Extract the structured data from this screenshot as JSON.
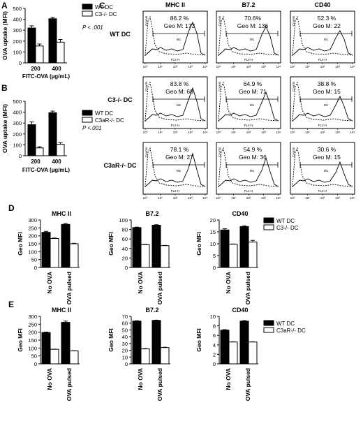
{
  "panel_letters": {
    "A": "A",
    "B": "B",
    "C": "C",
    "D": "D",
    "E": "E"
  },
  "flow": {
    "col_titles": [
      "MHC II",
      "B7.2",
      "CD40"
    ],
    "row_labels": [
      "WT DC",
      "C3-/- DC",
      "C3aR-/- DC"
    ],
    "cells": [
      [
        {
          "pct": "86.2 %",
          "geo": "Geo M: 173"
        },
        {
          "pct": "70.6%",
          "geo": "Geo M: 136"
        },
        {
          "pct": "52.3 %",
          "geo": "Geo M: 22"
        }
      ],
      [
        {
          "pct": "83.8 %",
          "geo": "Geo M: 68"
        },
        {
          "pct": "64.9 %",
          "geo": "Geo M: 71"
        },
        {
          "pct": "38.8 %",
          "geo": "Geo M: 15"
        }
      ],
      [
        {
          "pct": "78.1 %",
          "geo": "Geo M: 27"
        },
        {
          "pct": "54.9 %",
          "geo": "Geo M: 36"
        },
        {
          "pct": "30.6 %",
          "geo": "Geo M: 15"
        }
      ]
    ],
    "gate_label": "M1",
    "xaxis_label": "FL2-H",
    "yaxis_label": "Counts",
    "xticks": [
      "10⁰",
      "10¹",
      "10²",
      "10³",
      "10⁴"
    ]
  },
  "chart_data": [
    {
      "panel": "A",
      "type": "bar",
      "categories": [
        "200",
        "400"
      ],
      "series": [
        {
          "name": "WT DC",
          "values": [
            320,
            405
          ],
          "errors": [
            20,
            12
          ],
          "color": "#000000"
        },
        {
          "name": "C3-/- DC",
          "values": [
            155,
            190
          ],
          "errors": [
            18,
            25
          ],
          "color": "#ffffff"
        }
      ],
      "ylim": [
        0,
        500
      ],
      "yticks": [
        0,
        100,
        200,
        300,
        400,
        500
      ],
      "ylabel": "OVA uptake (MFI)",
      "xlabel": "FITC-OVA (µg/mL)",
      "annotation": "P < .001"
    },
    {
      "panel": "B",
      "type": "bar",
      "categories": [
        "200",
        "400"
      ],
      "series": [
        {
          "name": "WT DC",
          "values": [
            285,
            395
          ],
          "errors": [
            25,
            15
          ],
          "color": "#000000"
        },
        {
          "name": "C3aR-/- DC",
          "values": [
            72,
            105
          ],
          "errors": [
            10,
            15
          ],
          "color": "#ffffff"
        }
      ],
      "ylim": [
        0,
        500
      ],
      "yticks": [
        0,
        100,
        200,
        300,
        400,
        500
      ],
      "ylabel": "OVA uptake (MFI)",
      "xlabel": "FITC-OVA (µg/mL)",
      "annotation": "P <.001"
    },
    {
      "panel": "D",
      "type": "bar",
      "title": "MHC II",
      "categories": [
        "No OVA",
        "OVA pulsed"
      ],
      "series": [
        {
          "name": "WT DC",
          "values": [
            222,
            272
          ],
          "errors": [
            6,
            5
          ],
          "color": "#000000"
        },
        {
          "name": "C3-/- DC",
          "values": [
            183,
            150
          ],
          "errors": [
            3,
            3
          ],
          "color": "#ffffff"
        }
      ],
      "ylim": [
        0,
        300
      ],
      "yticks": [
        0,
        50,
        100,
        150,
        200,
        250,
        300
      ],
      "ylabel": "Geo MFI"
    },
    {
      "panel": "D",
      "type": "bar",
      "title": "B7.2",
      "categories": [
        "No OVA",
        "OVA pulsed"
      ],
      "series": [
        {
          "name": "WT DC",
          "values": [
            84,
            89
          ],
          "errors": [
            1,
            1
          ],
          "color": "#000000"
        },
        {
          "name": "C3-/- DC",
          "values": [
            48,
            46
          ],
          "errors": [
            0.5,
            0.5
          ],
          "color": "#ffffff"
        }
      ],
      "ylim": [
        0,
        100
      ],
      "yticks": [
        0,
        20,
        40,
        60,
        80,
        100
      ],
      "ylabel": "Geo MFI"
    },
    {
      "panel": "D",
      "type": "bar",
      "title": "CD40",
      "categories": [
        "No OVA",
        "OVA pulsed"
      ],
      "series": [
        {
          "name": "WT DC",
          "values": [
            15.8,
            17.2
          ],
          "errors": [
            0.5,
            0.3
          ],
          "color": "#000000"
        },
        {
          "name": "C3-/- DC",
          "values": [
            9.8,
            10.7
          ],
          "errors": [
            0.1,
            0.7
          ],
          "color": "#ffffff"
        }
      ],
      "ylim": [
        0,
        20
      ],
      "yticks": [
        0,
        5,
        10,
        15,
        20
      ],
      "ylabel": "Geo MFI",
      "legend": [
        "WT DC",
        "C3-/- DC"
      ]
    },
    {
      "panel": "E",
      "type": "bar",
      "title": "MHC II",
      "categories": [
        "No OVA",
        "OVA pulsed"
      ],
      "series": [
        {
          "name": "WT DC",
          "values": [
            198,
            262
          ],
          "errors": [
            3,
            8
          ],
          "color": "#000000"
        },
        {
          "name": "C3aR-/- DC",
          "values": [
            92,
            82
          ],
          "errors": [
            1,
            1
          ],
          "color": "#ffffff"
        }
      ],
      "ylim": [
        0,
        300
      ],
      "yticks": [
        0,
        50,
        100,
        150,
        200,
        250,
        300
      ],
      "ylabel": "Geo MFI"
    },
    {
      "panel": "E",
      "type": "bar",
      "title": "B7.2",
      "categories": [
        "No OVA",
        "OVA pulsed"
      ],
      "series": [
        {
          "name": "WT DC",
          "values": [
            63,
            64
          ],
          "errors": [
            0.5,
            0.5
          ],
          "color": "#000000"
        },
        {
          "name": "C3aR-/- DC",
          "values": [
            22,
            24
          ],
          "errors": [
            0.5,
            0.5
          ],
          "color": "#ffffff"
        }
      ],
      "ylim": [
        0,
        70
      ],
      "yticks": [
        0,
        10,
        20,
        30,
        40,
        50,
        60,
        70
      ],
      "ylabel": "Geo MFI"
    },
    {
      "panel": "E",
      "type": "bar",
      "title": "CD40",
      "categories": [
        "No OVA",
        "OVA pulsed"
      ],
      "series": [
        {
          "name": "WT DC",
          "values": [
            7.1,
            9.0
          ],
          "errors": [
            0.1,
            0.1
          ],
          "color": "#000000"
        },
        {
          "name": "C3aR-/- DC",
          "values": [
            4.6,
            4.6
          ],
          "errors": [
            0.05,
            0.05
          ],
          "color": "#ffffff"
        }
      ],
      "ylim": [
        0,
        10
      ],
      "yticks": [
        0,
        2,
        4,
        6,
        8,
        10
      ],
      "ylabel": "Geo MFI",
      "legend": [
        "WT DC",
        "C3aR-/- DC"
      ]
    }
  ]
}
